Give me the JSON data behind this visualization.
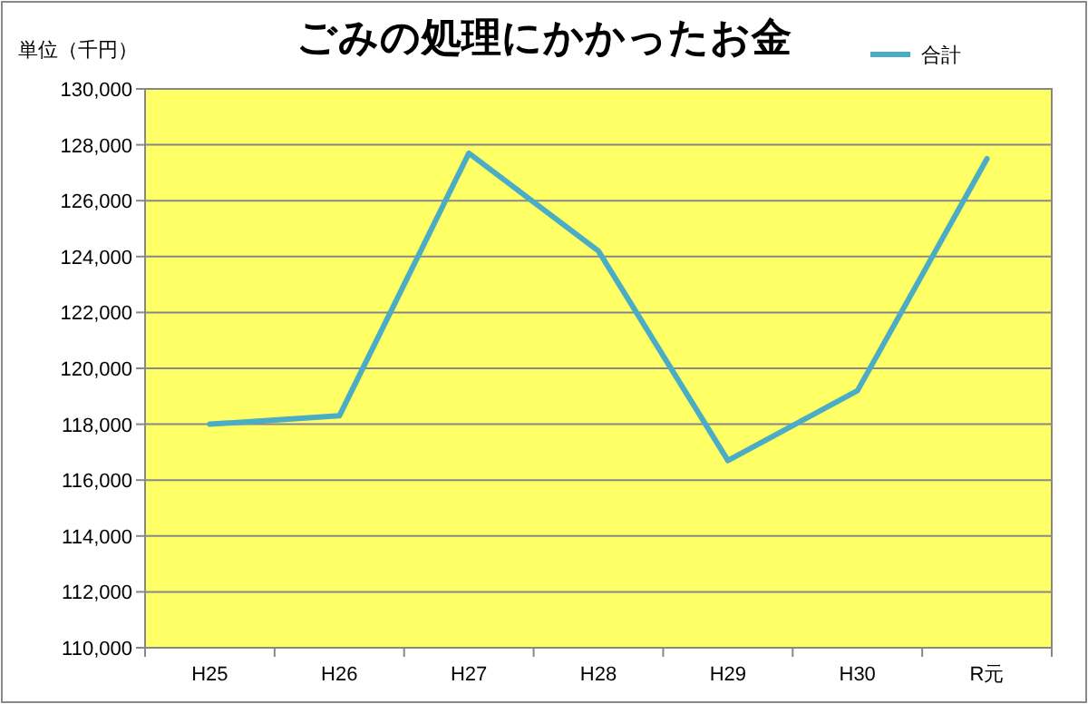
{
  "chart_data": {
    "type": "line",
    "title": "ごみの処理にかかったお金",
    "ylabel": "単位（千円）",
    "categories": [
      "H25",
      "H26",
      "H27",
      "H28",
      "H29",
      "H30",
      "R元"
    ],
    "series": [
      {
        "name": "合計",
        "color": "#4bacc6",
        "values": [
          118000,
          118300,
          127700,
          124200,
          116700,
          119200,
          127500
        ]
      }
    ],
    "ylim": [
      110000,
      130000
    ],
    "yticks": [
      {
        "value": 110000,
        "label": "110,000"
      },
      {
        "value": 112000,
        "label": "112,000"
      },
      {
        "value": 114000,
        "label": "114,000"
      },
      {
        "value": 116000,
        "label": "116,000"
      },
      {
        "value": 118000,
        "label": "118,000"
      },
      {
        "value": 120000,
        "label": "120,000"
      },
      {
        "value": 122000,
        "label": "122,000"
      },
      {
        "value": 124000,
        "label": "124,000"
      },
      {
        "value": 126000,
        "label": "126,000"
      },
      {
        "value": 128000,
        "label": "128,000"
      },
      {
        "value": 130000,
        "label": "130,000"
      }
    ],
    "grid": "y",
    "legend": "top right"
  }
}
